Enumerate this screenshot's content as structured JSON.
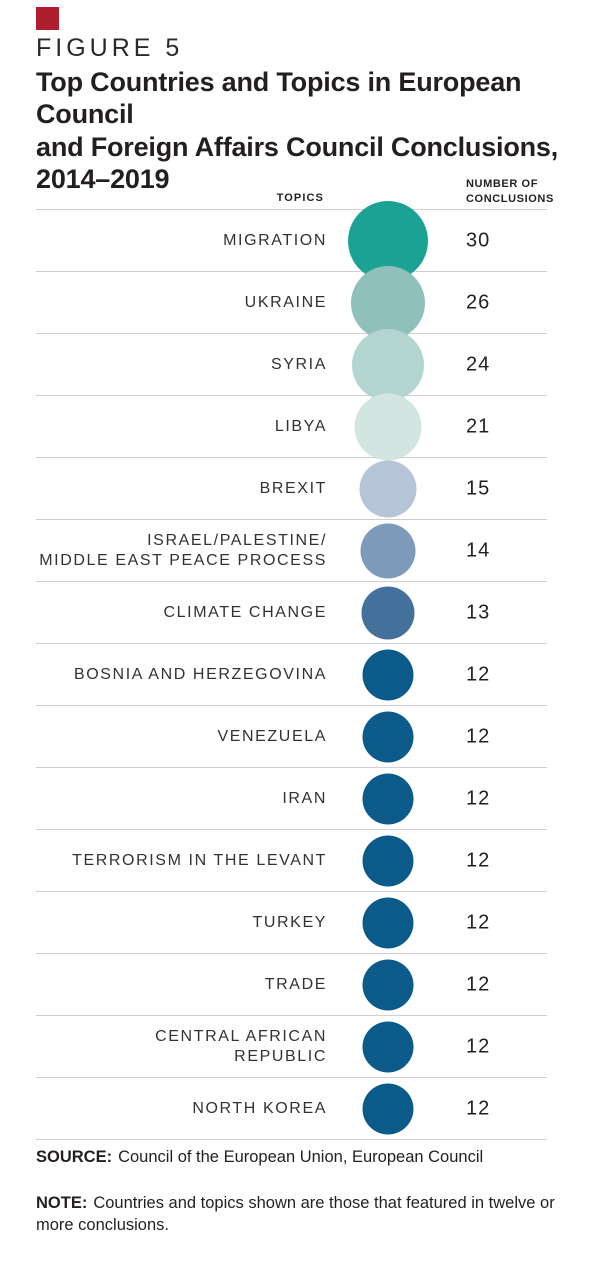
{
  "brand": {
    "red_square_color": "#ae1e2c"
  },
  "figure": {
    "kicker": "FIGURE 5",
    "title": "Top Countries and Topics in European Council\nand Foreign Affairs Council Conclusions,\n2014–2019"
  },
  "table_headers": {
    "topics": "TOPICS",
    "number": "NUMBER OF\nCONCLUSIONS"
  },
  "chart_data": {
    "type": "bubble",
    "title": "Top Countries and Topics in European Council and Foreign Affairs Council Conclusions, 2014–2019",
    "category_label": "TOPICS",
    "value_label": "NUMBER OF CONCLUSIONS",
    "categories": [
      "MIGRATION",
      "UKRAINE",
      "SYRIA",
      "LIBYA",
      "BREXIT",
      "ISRAEL/PALESTINE/\nMIDDLE EAST PEACE PROCESS",
      "CLIMATE CHANGE",
      "BOSNIA AND HERZEGOVINA",
      "VENEZUELA",
      "IRAN",
      "TERRORISM IN THE LEVANT",
      "TURKEY",
      "TRADE",
      "CENTRAL AFRICAN\nREPUBLIC",
      "NORTH KOREA"
    ],
    "values": [
      30,
      26,
      24,
      21,
      15,
      14,
      13,
      12,
      12,
      12,
      12,
      12,
      12,
      12,
      12
    ],
    "bubble_colors": [
      "#1aa394",
      "#8fc0ba",
      "#b2d5cf",
      "#d3e5e1",
      "#b6c4d8",
      "#7e9aba",
      "#44719b",
      "#0b5a89",
      "#0b5a89",
      "#0b5a89",
      "#0b5a89",
      "#0b5a89",
      "#0b5a89",
      "#0b5a89",
      "#0b5a89"
    ],
    "gridline_color": "#cfcfcf",
    "layout": "rows of 61px, bubbles centered at x=388, values at x=466, sized ~14.6*sqrt(value) px diameter"
  },
  "footer": {
    "source_label": "SOURCE:",
    "source_text": "Council of the European Union, European Council",
    "note_label": "NOTE:",
    "note_text": "Countries and topics shown are those that featured in twelve or more conclusions."
  }
}
